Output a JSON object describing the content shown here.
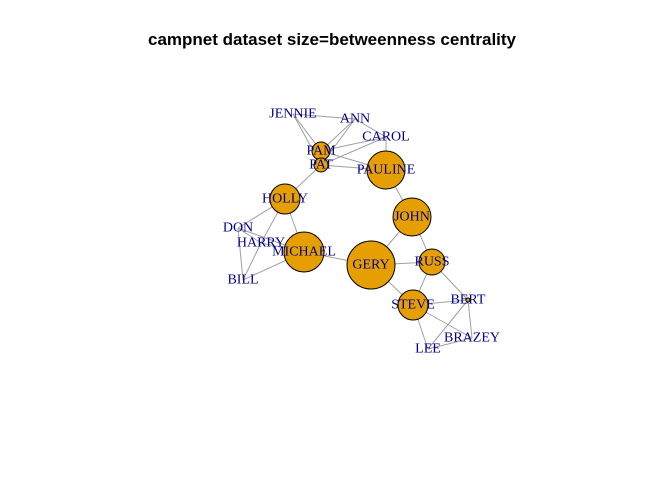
{
  "title": "campnet dataset size=betweenness centrality",
  "style": {
    "node_fill": "#E69F00",
    "node_stroke": "#000000",
    "edge_color": "#A0A0A0",
    "label_color": "#00008B"
  },
  "nodes": [
    {
      "id": "JENNIE"
    },
    {
      "id": "ANN"
    },
    {
      "id": "CAROL"
    },
    {
      "id": "PAM"
    },
    {
      "id": "PAT"
    },
    {
      "id": "PAULINE"
    },
    {
      "id": "HOLLY"
    },
    {
      "id": "JOHN"
    },
    {
      "id": "DON"
    },
    {
      "id": "HARRY"
    },
    {
      "id": "MICHAEL"
    },
    {
      "id": "GERY"
    },
    {
      "id": "RUSS"
    },
    {
      "id": "BILL"
    },
    {
      "id": "BERT"
    },
    {
      "id": "STEVE"
    },
    {
      "id": "BRAZEY"
    },
    {
      "id": "LEE"
    }
  ],
  "edges": [
    [
      "JENNIE",
      "PAM"
    ],
    [
      "JENNIE",
      "PAT"
    ],
    [
      "JENNIE",
      "ANN"
    ],
    [
      "ANN",
      "PAM"
    ],
    [
      "ANN",
      "PAT"
    ],
    [
      "ANN",
      "CAROL"
    ],
    [
      "CAROL",
      "PAM"
    ],
    [
      "CAROL",
      "PAT"
    ],
    [
      "CAROL",
      "PAULINE"
    ],
    [
      "PAM",
      "PAT"
    ],
    [
      "PAM",
      "PAULINE"
    ],
    [
      "PAT",
      "PAULINE"
    ],
    [
      "PAT",
      "HOLLY"
    ],
    [
      "PAULINE",
      "JOHN"
    ],
    [
      "HOLLY",
      "DON"
    ],
    [
      "HOLLY",
      "HARRY"
    ],
    [
      "HOLLY",
      "MICHAEL"
    ],
    [
      "DON",
      "HARRY"
    ],
    [
      "DON",
      "MICHAEL"
    ],
    [
      "DON",
      "BILL"
    ],
    [
      "HARRY",
      "MICHAEL"
    ],
    [
      "HARRY",
      "BILL"
    ],
    [
      "MICHAEL",
      "BILL"
    ],
    [
      "MICHAEL",
      "GERY"
    ],
    [
      "JOHN",
      "GERY"
    ],
    [
      "JOHN",
      "RUSS"
    ],
    [
      "GERY",
      "RUSS"
    ],
    [
      "GERY",
      "STEVE"
    ],
    [
      "RUSS",
      "STEVE"
    ],
    [
      "RUSS",
      "BERT"
    ],
    [
      "STEVE",
      "BERT"
    ],
    [
      "STEVE",
      "LEE"
    ],
    [
      "STEVE",
      "BRAZEY"
    ],
    [
      "BERT",
      "LEE"
    ],
    [
      "BERT",
      "BRAZEY"
    ],
    [
      "LEE",
      "BRAZEY"
    ]
  ]
}
